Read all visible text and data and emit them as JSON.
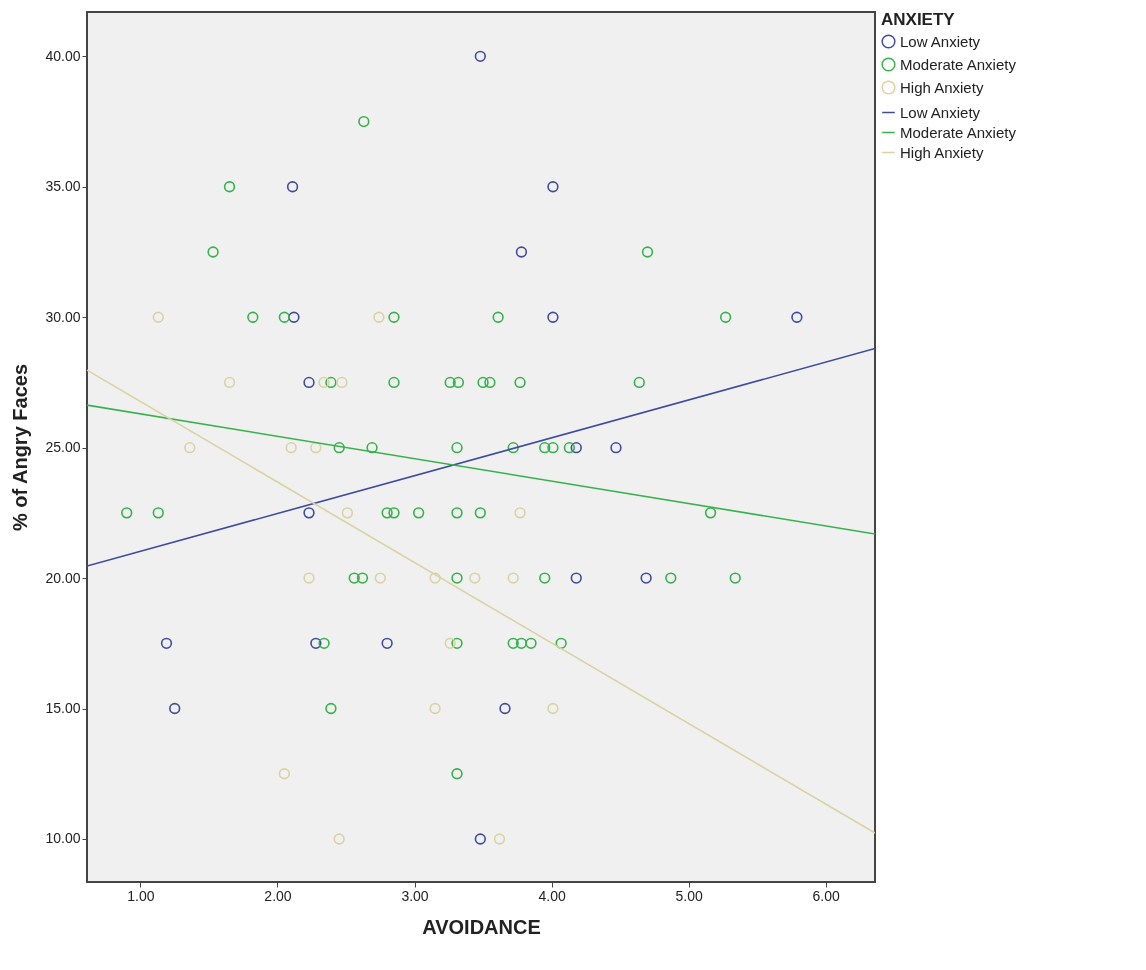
{
  "chart_data": {
    "type": "scatter",
    "xlabel": "AVOIDANCE",
    "ylabel": "% of Angry Faces",
    "legend_title": "ANXIETY",
    "legend": "right",
    "grid": false,
    "marker": "circle",
    "line_style": "solid",
    "xlim": [
      0.61,
      6.36
    ],
    "ylim": [
      8.35,
      41.7
    ],
    "xticks": [
      {
        "value": 1,
        "label": "1.00"
      },
      {
        "value": 2,
        "label": "2.00"
      },
      {
        "value": 3,
        "label": "3.00"
      },
      {
        "value": 4,
        "label": "4.00"
      },
      {
        "value": 5,
        "label": "5.00"
      },
      {
        "value": 6,
        "label": "6.00"
      }
    ],
    "yticks": [
      {
        "value": 10,
        "label": "10.00"
      },
      {
        "value": 15,
        "label": "15.00"
      },
      {
        "value": 20,
        "label": "20.00"
      },
      {
        "value": 25,
        "label": "25.00"
      },
      {
        "value": 30,
        "label": "30.00"
      },
      {
        "value": 35,
        "label": "35.00"
      },
      {
        "value": 40,
        "label": "40.00"
      }
    ],
    "series": [
      {
        "name": "Low Anxiety",
        "color": "#3e4ba0",
        "x": [
          3.48,
          2.11,
          4.01,
          3.78,
          2.12,
          4.01,
          5.79,
          2.23,
          4.18,
          4.47,
          2.23,
          4.18,
          4.69,
          1.19,
          2.28,
          2.8,
          1.25,
          3.66,
          3.48
        ],
        "values": [
          40,
          35,
          35,
          32.5,
          30,
          30,
          30,
          27.5,
          25,
          25,
          22.5,
          20,
          20,
          17.5,
          17.5,
          17.5,
          15,
          15,
          10
        ]
      },
      {
        "name": "Moderate Anxiety",
        "color": "#35b34a",
        "x": [
          2.63,
          1.65,
          1.53,
          4.7,
          1.82,
          2.05,
          2.85,
          3.61,
          5.27,
          2.39,
          2.85,
          3.26,
          3.32,
          3.5,
          3.55,
          3.77,
          4.64,
          2.45,
          2.69,
          3.31,
          3.72,
          3.95,
          4.01,
          4.13,
          0.9,
          1.13,
          2.8,
          2.85,
          3.03,
          3.31,
          3.48,
          5.16,
          2.56,
          2.62,
          3.31,
          3.95,
          4.87,
          5.34,
          2.34,
          3.31,
          3.72,
          3.78,
          3.85,
          4.07,
          2.39,
          3.31
        ],
        "values": [
          37.5,
          35,
          32.5,
          32.5,
          30,
          30,
          30,
          30,
          30,
          27.5,
          27.5,
          27.5,
          27.5,
          27.5,
          27.5,
          27.5,
          27.5,
          25,
          25,
          25,
          25,
          25,
          25,
          25,
          22.5,
          22.5,
          22.5,
          22.5,
          22.5,
          22.5,
          22.5,
          22.5,
          20,
          20,
          20,
          20,
          20,
          20,
          17.5,
          17.5,
          17.5,
          17.5,
          17.5,
          17.5,
          15,
          12.5
        ]
      },
      {
        "name": "High Anxiety",
        "color": "#d8d3a0",
        "x": [
          1.13,
          2.74,
          1.65,
          2.34,
          2.47,
          1.36,
          2.1,
          2.28,
          2.51,
          3.77,
          2.23,
          2.75,
          3.15,
          3.44,
          3.72,
          3.26,
          3.15,
          4.01,
          2.05,
          2.45,
          3.62
        ],
        "values": [
          30,
          30,
          27.5,
          27.5,
          27.5,
          25,
          25,
          25,
          22.5,
          22.5,
          20,
          20,
          20,
          20,
          20,
          17.5,
          15,
          15,
          12.5,
          10,
          10
        ]
      },
      {
        "name": "Low Anxiety",
        "type": "line",
        "marker": "none",
        "color": "#3e4ba0",
        "x": [
          0.61,
          6.36
        ],
        "values": [
          20.46,
          28.8
        ]
      },
      {
        "name": "Moderate Anxiety",
        "type": "line",
        "marker": "none",
        "color": "#35b34a",
        "x": [
          0.61,
          6.36
        ],
        "values": [
          26.63,
          21.69
        ]
      },
      {
        "name": "High Anxiety",
        "type": "line",
        "marker": "none",
        "color": "#d8d3a0",
        "x": [
          0.61,
          6.36
        ],
        "values": [
          27.97,
          10.23
        ]
      }
    ]
  }
}
